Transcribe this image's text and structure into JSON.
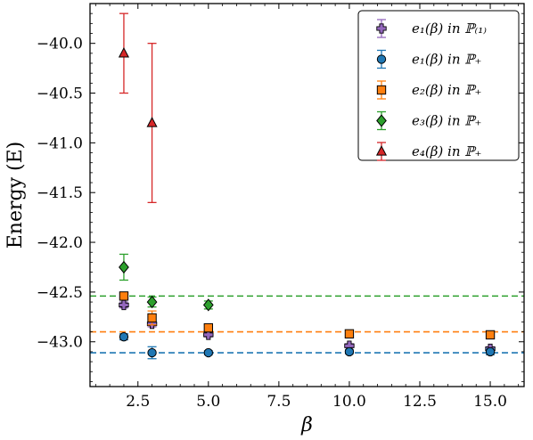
{
  "chart_data": {
    "type": "scatter",
    "title": "",
    "xlabel": "β",
    "ylabel": "Energy (E)",
    "xlim": [
      0.8,
      16.2
    ],
    "ylim": [
      -43.45,
      -39.6
    ],
    "xticks": [
      2.5,
      5.0,
      7.5,
      10.0,
      12.5,
      15.0
    ],
    "xtick_labels": [
      "2.5",
      "5.0",
      "7.5",
      "10.0",
      "12.5",
      "15.0"
    ],
    "yticks": [
      -43.0,
      -42.5,
      -42.0,
      -41.5,
      -41.0,
      -40.5,
      -40.0
    ],
    "ytick_labels": [
      "−43.0",
      "−42.5",
      "−42.0",
      "−41.5",
      "−41.0",
      "−40.5",
      "−40.0"
    ],
    "grid": false,
    "legend_position": "top-right",
    "series": [
      {
        "name": "e₁(β) in ℙ₍₁₎",
        "marker": "plus",
        "color": "#9467bd",
        "fill": "#9467bd",
        "points": [
          {
            "x": 2,
            "y": -42.63,
            "err": 0.03
          },
          {
            "x": 3,
            "y": -42.82,
            "err": 0.03
          },
          {
            "x": 5,
            "y": -42.93,
            "err": 0.02
          },
          {
            "x": 10,
            "y": -43.04,
            "err": 0.02
          },
          {
            "x": 15,
            "y": -43.07,
            "err": 0.02
          }
        ]
      },
      {
        "name": "e₁(β) in ℙ₊",
        "marker": "circle",
        "color": "#1f77b4",
        "fill": "#1f77b4",
        "points": [
          {
            "x": 2,
            "y": -42.95,
            "err": 0.03
          },
          {
            "x": 3,
            "y": -43.11,
            "err": 0.06
          },
          {
            "x": 5,
            "y": -43.11,
            "err": 0.02
          },
          {
            "x": 10,
            "y": -43.1,
            "err": 0.02
          },
          {
            "x": 15,
            "y": -43.1,
            "err": 0.03
          }
        ]
      },
      {
        "name": "e₂(β) in ℙ₊",
        "marker": "square",
        "color": "#ff7f0e",
        "fill": "#ff7f0e",
        "points": [
          {
            "x": 2,
            "y": -42.54,
            "err": 0.03
          },
          {
            "x": 3,
            "y": -42.76,
            "err": 0.07
          },
          {
            "x": 5,
            "y": -42.86,
            "err": 0.03
          },
          {
            "x": 10,
            "y": -42.92,
            "err": 0.03
          },
          {
            "x": 15,
            "y": -42.93,
            "err": 0.02
          }
        ]
      },
      {
        "name": "e₃(β) in ℙ₊",
        "marker": "diamond",
        "color": "#2ca02c",
        "fill": "#2ca02c",
        "points": [
          {
            "x": 2,
            "y": -42.25,
            "err": 0.13
          },
          {
            "x": 3,
            "y": -42.6,
            "err": 0.05
          },
          {
            "x": 5,
            "y": -42.63,
            "err": 0.04
          }
        ]
      },
      {
        "name": "e₄(β) in ℙ₊",
        "marker": "triangle",
        "color": "#d62728",
        "fill": "#d62728",
        "points": [
          {
            "x": 2,
            "y": -40.1,
            "err": 0.4
          },
          {
            "x": 3,
            "y": -40.8,
            "err": 0.8
          }
        ]
      }
    ],
    "reference_lines": [
      {
        "y": -42.54,
        "color": "#2ca02c",
        "style": "dashed"
      },
      {
        "y": -42.9,
        "color": "#ff7f0e",
        "style": "dashed"
      },
      {
        "y": -43.11,
        "color": "#1f77b4",
        "style": "dashed"
      }
    ]
  }
}
